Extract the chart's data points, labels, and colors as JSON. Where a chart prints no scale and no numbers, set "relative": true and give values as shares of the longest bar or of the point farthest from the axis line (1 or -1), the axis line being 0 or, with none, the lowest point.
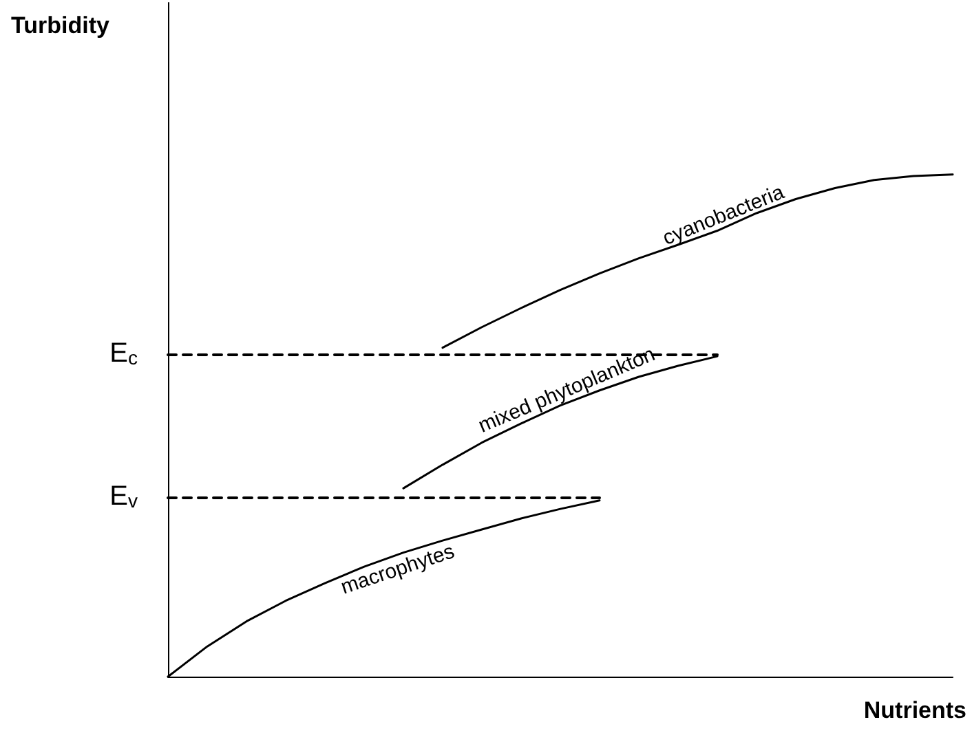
{
  "chart_data": {
    "type": "line",
    "relative": true,
    "xlabel": "Nutrients",
    "annotations": [
      "Turbidity"
    ],
    "grid": false,
    "legend": false,
    "marker": "none",
    "categories": [
      null,
      null,
      null,
      null,
      null,
      null,
      null,
      null,
      null,
      null,
      null,
      null,
      null,
      null,
      null,
      null,
      null,
      null,
      null,
      null,
      null
    ],
    "series": [
      {
        "name": "macrophytes",
        "color": "#000000",
        "values": [
          0,
          0.06,
          0.11,
          0.151,
          0.186,
          0.219,
          0.247,
          0.271,
          0.293,
          0.315,
          0.334,
          0.351,
          null,
          null,
          null,
          null,
          null,
          null,
          null,
          null,
          null
        ]
      },
      {
        "name": "mixed phytoplankton",
        "color": "#000000",
        "values": [
          null,
          null,
          null,
          null,
          null,
          null,
          0.375,
          0.422,
          0.466,
          0.504,
          0.54,
          0.57,
          0.597,
          0.619,
          0.638,
          null,
          null,
          null,
          null,
          null,
          null
        ]
      },
      {
        "name": "cyanobacteria",
        "color": "#000000",
        "values": [
          null,
          null,
          null,
          null,
          null,
          null,
          null,
          0.655,
          0.696,
          0.734,
          0.77,
          0.803,
          0.833,
          0.86,
          0.888,
          0.923,
          0.951,
          0.973,
          0.989,
          0.997,
          1
        ]
      },
      {
        "name": "E$_{c}$",
        "color": "#000000",
        "line_style": "dashed",
        "values": [
          0.641,
          0.641,
          0.641,
          0.641,
          0.641,
          0.641,
          0.641,
          0.641,
          0.641,
          0.641,
          0.641,
          0.641,
          0.641,
          0.641,
          0.641,
          null,
          null,
          null,
          null,
          null,
          null
        ]
      },
      {
        "name": "E$_{v}$",
        "color": "#000000",
        "line_style": "dashed",
        "values": [
          0.356,
          0.356,
          0.356,
          0.356,
          0.356,
          0.356,
          0.356,
          0.356,
          0.356,
          0.356,
          0.356,
          0.356,
          null,
          null,
          null,
          null,
          null,
          null,
          null,
          null,
          null
        ]
      }
    ]
  }
}
